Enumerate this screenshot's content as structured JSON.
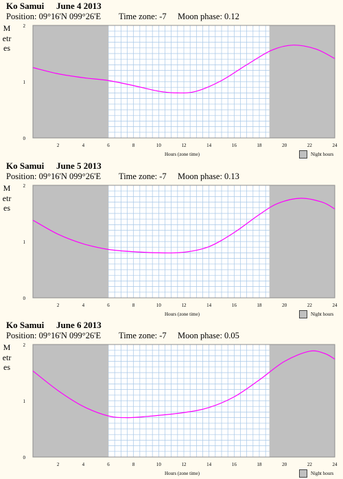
{
  "panels": [
    {
      "location": "Ko Samui",
      "date": "June 4 2013",
      "position_text": "Position: 09°16'N 099°26'E",
      "timezone_text": "Time zone: -7",
      "moon_text": "Moon phase: 0.12"
    },
    {
      "location": "Ko Samui",
      "date": "June 5 2013",
      "position_text": "Position: 09°16'N 099°26'E",
      "timezone_text": "Time zone: -7",
      "moon_text": "Moon phase: 0.13"
    },
    {
      "location": "Ko Samui",
      "date": "June 6 2013",
      "position_text": "Position: 09°16'N 099°26'E",
      "timezone_text": "Time zone: -7",
      "moon_text": "Moon phase: 0.05"
    }
  ],
  "chart_data": [
    {
      "type": "line",
      "title": "Ko Samui June 4 2013",
      "xlabel": "Hours (zone time)",
      "ylabel": "Metres",
      "xlim": [
        0,
        24
      ],
      "ylim": [
        0,
        2
      ],
      "x_ticks": [
        2,
        4,
        6,
        8,
        10,
        12,
        14,
        16,
        18,
        20,
        22,
        24
      ],
      "y_ticks": [
        0,
        1,
        2
      ],
      "legend": "Night hours",
      "night_hours": [
        [
          0,
          6.0
        ],
        [
          18.8,
          24
        ]
      ],
      "series": [
        {
          "x": [
            0,
            2,
            4,
            6,
            8,
            10,
            11.5,
            13,
            15,
            17,
            19,
            20.7,
            22.5,
            24
          ],
          "y": [
            1.25,
            1.14,
            1.07,
            1.02,
            0.93,
            0.83,
            0.8,
            0.83,
            1.02,
            1.3,
            1.56,
            1.65,
            1.58,
            1.41
          ]
        }
      ],
      "colors": {
        "line": "#ff00ff",
        "night": "#c0c0c0",
        "grid": "#a7c7e7"
      }
    },
    {
      "type": "line",
      "title": "Ko Samui June 5 2013",
      "xlabel": "Hours (zone time)",
      "ylabel": "Metres",
      "xlim": [
        0,
        24
      ],
      "ylim": [
        0,
        2
      ],
      "x_ticks": [
        2,
        4,
        6,
        8,
        10,
        12,
        14,
        16,
        18,
        20,
        22,
        24
      ],
      "y_ticks": [
        0,
        1,
        2
      ],
      "legend": "Night hours",
      "night_hours": [
        [
          0,
          6.0
        ],
        [
          18.8,
          24
        ]
      ],
      "series": [
        {
          "x": [
            0,
            2,
            4,
            6,
            8,
            10,
            12,
            14,
            16,
            18,
            19.5,
            21.3,
            23,
            24
          ],
          "y": [
            1.38,
            1.13,
            0.96,
            0.86,
            0.82,
            0.8,
            0.81,
            0.91,
            1.16,
            1.48,
            1.68,
            1.77,
            1.7,
            1.58
          ]
        }
      ],
      "colors": {
        "line": "#ff00ff",
        "night": "#c0c0c0",
        "grid": "#a7c7e7"
      }
    },
    {
      "type": "line",
      "title": "Ko Samui June 6 2013",
      "xlabel": "Hours (zone time)",
      "ylabel": "Metres",
      "xlim": [
        0,
        24
      ],
      "ylim": [
        0,
        2
      ],
      "x_ticks": [
        2,
        4,
        6,
        8,
        10,
        12,
        14,
        16,
        18,
        20,
        22,
        24
      ],
      "y_ticks": [
        0,
        1,
        2
      ],
      "legend": "Night hours",
      "night_hours": [
        [
          0,
          6.0
        ],
        [
          18.8,
          24
        ]
      ],
      "series": [
        {
          "x": [
            0,
            2,
            4,
            6,
            7.5,
            9,
            12,
            14,
            16,
            18,
            20,
            22,
            23.2,
            24
          ],
          "y": [
            1.53,
            1.18,
            0.9,
            0.73,
            0.7,
            0.72,
            0.79,
            0.88,
            1.07,
            1.37,
            1.7,
            1.88,
            1.84,
            1.74
          ]
        }
      ],
      "colors": {
        "line": "#ff00ff",
        "night": "#c0c0c0",
        "grid": "#a7c7e7"
      }
    }
  ]
}
